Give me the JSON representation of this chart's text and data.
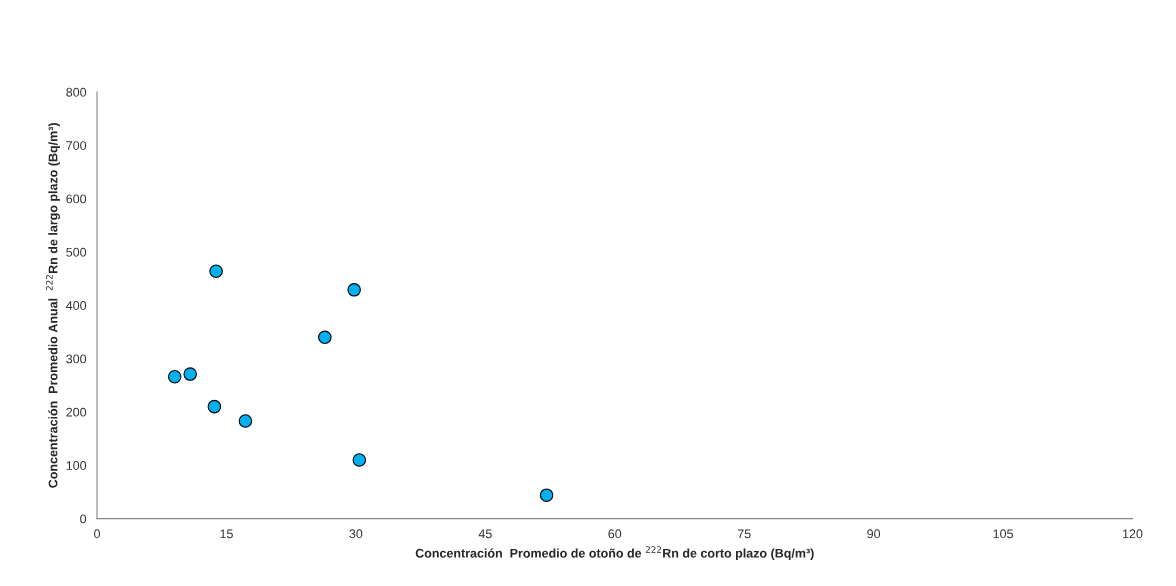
{
  "chart_data": {
    "type": "scatter",
    "xlabel": "Concentración  Promedio de otoño de $^{222}$Rn de corto plazo (Bq/m³)",
    "ylabel": "Concentración  Promedio Anual  $^{222}$Rn de largo plazo (Bq/m³)",
    "x": [
      9.0,
      10.8,
      13.6,
      13.8,
      17.2,
      26.4,
      29.8,
      30.4,
      52.1
    ],
    "series": [
      {
        "color": "#00b0f0",
        "values": [
          266,
          271,
          210,
          464,
          183,
          340,
          429,
          110,
          44
        ]
      }
    ],
    "xlim": [
      0,
      120
    ],
    "xticks": [
      0,
      15,
      30,
      45,
      60,
      75,
      90,
      105,
      120
    ],
    "ylim": [
      0,
      800
    ],
    "yticks": [
      0,
      100,
      200,
      300,
      400,
      500,
      600,
      700,
      800
    ],
    "grid": false,
    "legend": false,
    "marker": "circle"
  }
}
